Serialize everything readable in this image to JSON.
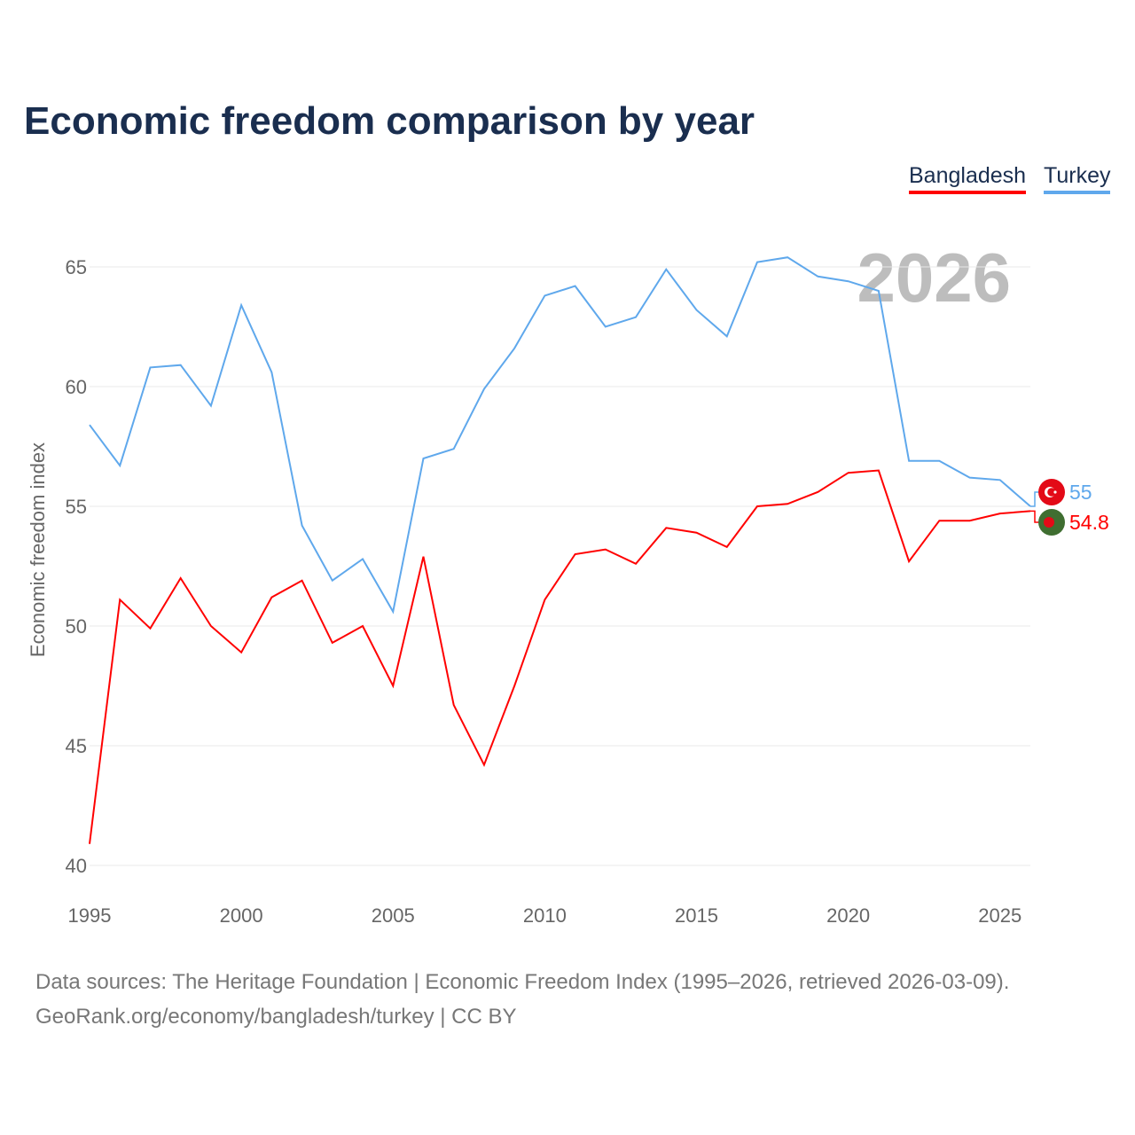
{
  "chart_data": {
    "type": "line",
    "title": "Economic freedom comparison by year",
    "xlabel": "",
    "ylabel": "Economic freedom index",
    "xlim": [
      1995,
      2026
    ],
    "ylim": [
      40,
      65
    ],
    "yticks": [
      40,
      45,
      50,
      55,
      60,
      65
    ],
    "xticks": [
      1995,
      2000,
      2005,
      2010,
      2015,
      2020,
      2025
    ],
    "grid": true,
    "legend_position": "top-right",
    "year_label": "2026",
    "x": [
      1995,
      1996,
      1997,
      1998,
      1999,
      2000,
      2001,
      2002,
      2003,
      2004,
      2005,
      2006,
      2007,
      2008,
      2009,
      2010,
      2011,
      2012,
      2013,
      2014,
      2015,
      2016,
      2017,
      2018,
      2019,
      2020,
      2021,
      2022,
      2023,
      2024,
      2025,
      2026
    ],
    "series": [
      {
        "name": "Bangladesh",
        "color": "#ff0000",
        "end_label": "54.8",
        "values": [
          40.9,
          51.1,
          49.9,
          52.0,
          50.0,
          48.9,
          51.2,
          51.9,
          49.3,
          50.0,
          47.5,
          52.9,
          46.7,
          44.2,
          47.5,
          51.1,
          53.0,
          53.2,
          52.6,
          54.1,
          53.9,
          53.3,
          55.0,
          55.1,
          55.6,
          56.4,
          56.5,
          52.7,
          54.4,
          54.4,
          54.7,
          54.8
        ]
      },
      {
        "name": "Turkey",
        "color": "#5fa8ec",
        "end_label": "55",
        "values": [
          58.4,
          56.7,
          60.8,
          60.9,
          59.2,
          63.4,
          60.6,
          54.2,
          51.9,
          52.8,
          50.6,
          57.0,
          57.4,
          59.9,
          61.6,
          63.8,
          64.2,
          62.5,
          62.9,
          64.9,
          63.2,
          62.1,
          65.2,
          65.4,
          64.6,
          64.4,
          64.0,
          56.9,
          56.9,
          56.2,
          56.1,
          55.0
        ]
      }
    ]
  },
  "source_line1": "Data sources: The Heritage Foundation | Economic Freedom Index (1995–2026, retrieved 2026-03-09).",
  "source_line2": "GeoRank.org/economy/bangladesh/turkey | CC BY"
}
